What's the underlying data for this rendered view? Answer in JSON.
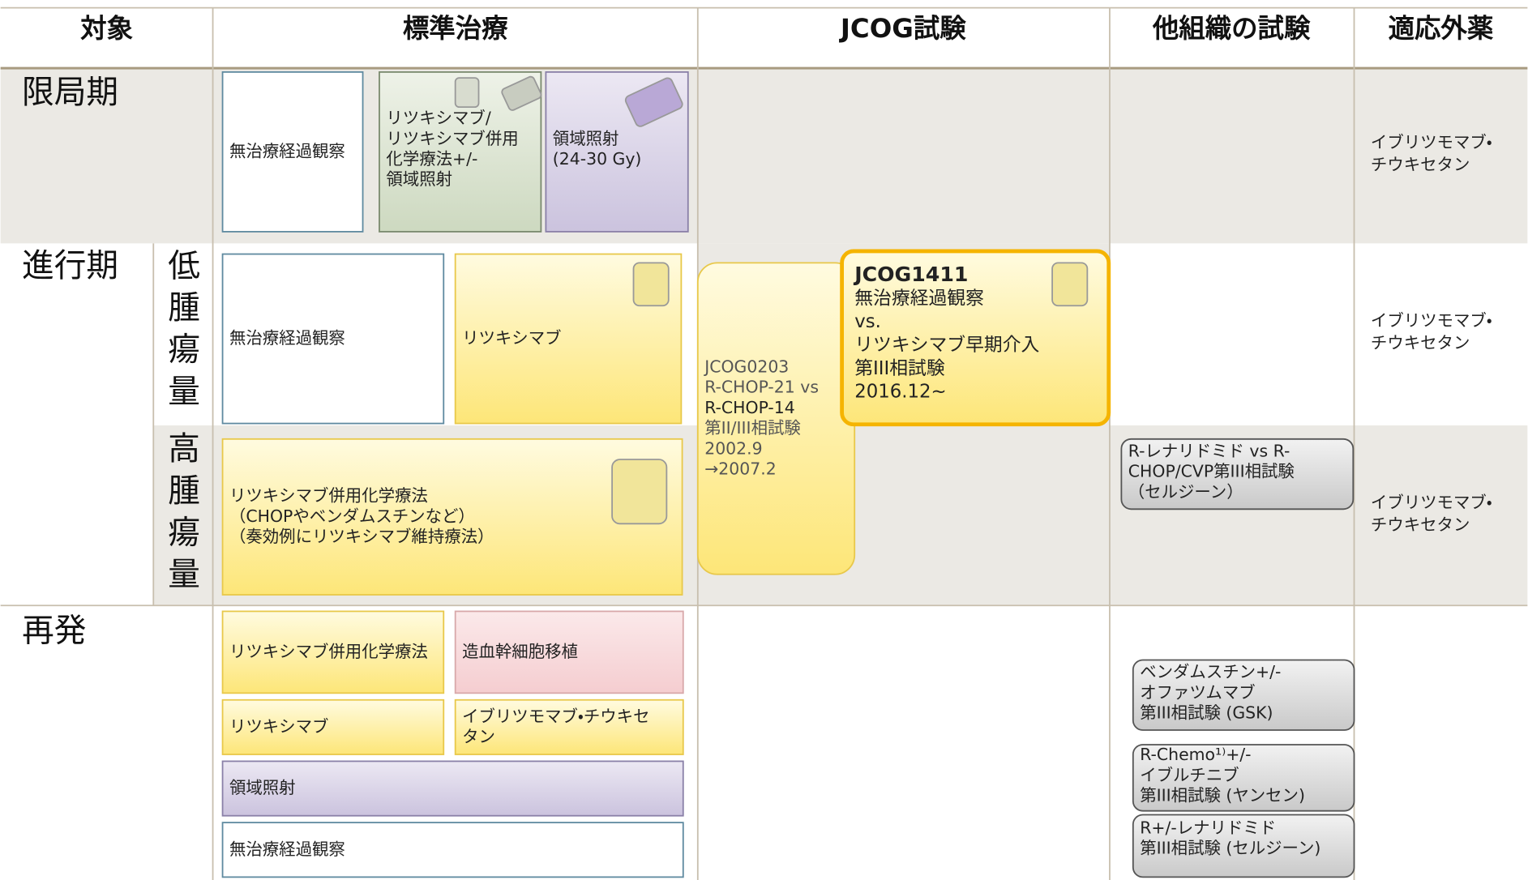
{
  "header": {
    "columns": [
      "対象",
      "標準治療",
      "JCOG試験",
      "他組織の試験",
      "適応外薬"
    ]
  },
  "row_labels": [
    "限局期",
    "進行期",
    "低腫瘍量",
    "高腫瘍量",
    "再発"
  ],
  "boxes": [
    {
      "lines": [
        "無治療経過観察"
      ]
    },
    {
      "lines": [
        "リツキシマブ/",
        "リツキシマブ併用",
        "化学療法+/-",
        "領域照射"
      ]
    },
    {
      "lines": [
        "領域照射",
        "(24-30 Gy)"
      ]
    },
    {
      "lines": [
        "無治療経過観察"
      ]
    },
    {
      "lines": [
        "リツキシマブ"
      ]
    },
    {
      "lines": [
        "JCOG0203",
        "R-CHOP-21 vs",
        "R-CHOP-14",
        "第II/III相試験",
        "2002.9",
        "→2007.2"
      ]
    },
    {
      "lines": [
        "JCOG1411",
        "無治療経過観察",
        "vs.",
        "リツキシマブ早期介入",
        "第III相試験",
        "2016.12~"
      ]
    },
    {
      "lines": [
        "リツキシマブ併用化学療法",
        "（CHOPやベンダムスチンなど）",
        "（奏効例にリツキシマブ維持療法）"
      ]
    },
    {
      "lines": [
        "R-レナリドミド vs R-",
        "CHOP/CVP第III相試験",
        "（セルジーン）"
      ]
    },
    {
      "lines": [
        "リツキシマブ併用化学療法"
      ]
    },
    {
      "lines": [
        "造血幹細胞移植"
      ]
    },
    {
      "lines": [
        "リツキシマブ"
      ]
    },
    {
      "lines": [
        "イブリツモマブ・チウキセ",
        "タン"
      ]
    },
    {
      "lines": [
        "領域照射"
      ]
    },
    {
      "lines": [
        "無治療経過観察"
      ]
    },
    {
      "lines": [
        "ベンダムスチン+/-",
        "オファツムマブ",
        "第III相試験 (GSK)"
      ]
    },
    {
      "lines": [
        "R-Chemo¹⁾+/-",
        "イブルチニブ",
        "第III相試験 (ヤンセン)"
      ]
    },
    {
      "lines": [
        "R+/-レナリドミド",
        "第III相試験 (セルジーン)"
      ]
    }
  ],
  "off_label": [
    {
      "lines": [
        "イブリツモマブ・",
        "チウキセタン"
      ]
    },
    {
      "lines": [
        "イブリツモマブ・",
        "チウキセタン"
      ]
    },
    {
      "lines": [
        "イブリツモマブ・",
        "チウキセタン"
      ]
    }
  ]
}
